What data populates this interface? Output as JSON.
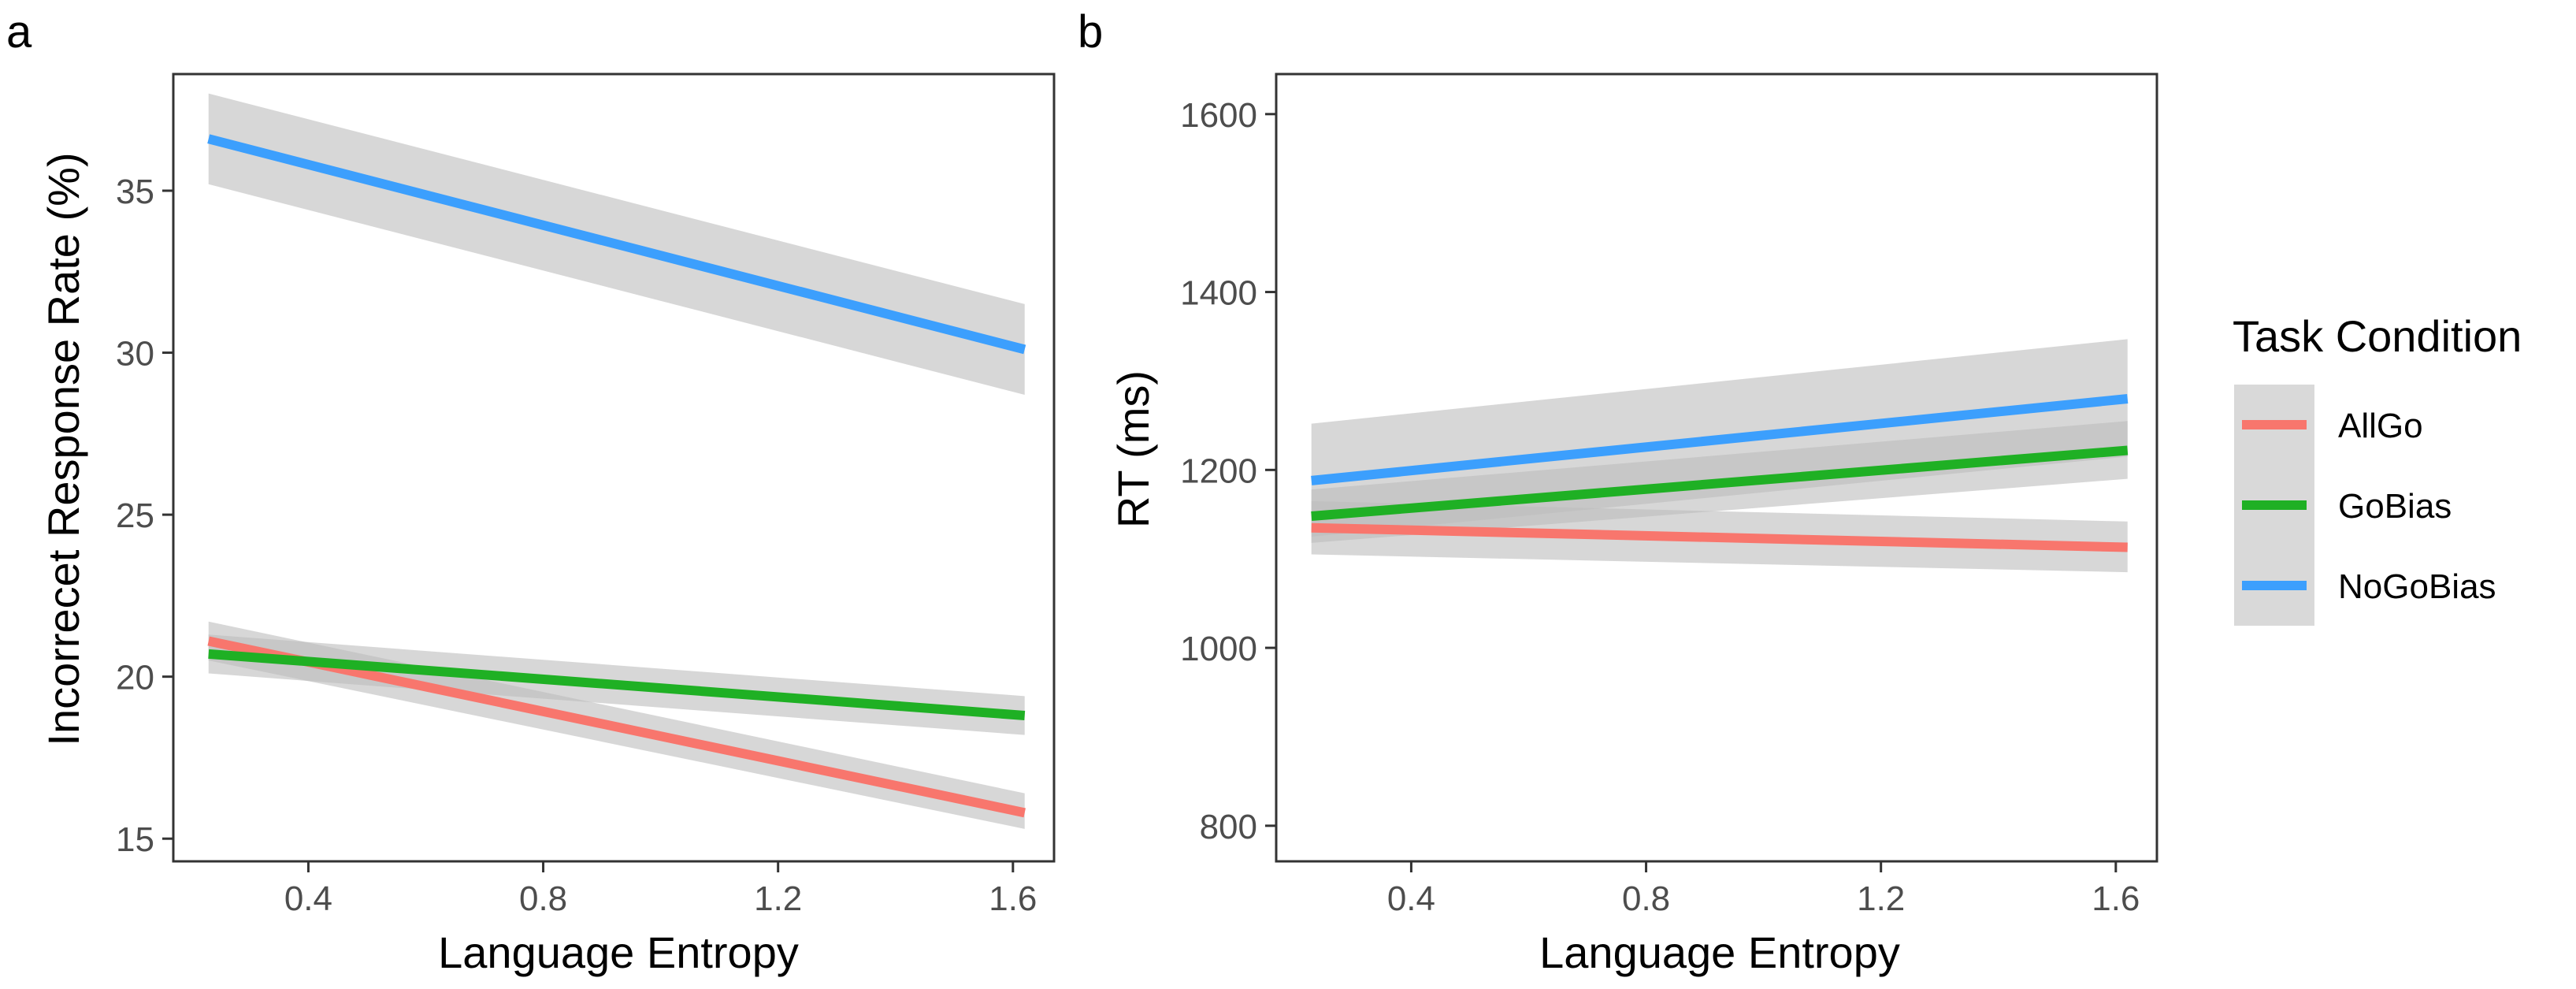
{
  "colors": {
    "AllGo": "#f8766d",
    "GoBias": "#1fb024",
    "NoGoBias": "#3c9ffd",
    "ribbon": "#bdbdbd"
  },
  "legend": {
    "title": "Task Condition",
    "entries": [
      "AllGo",
      "GoBias",
      "NoGoBias"
    ]
  },
  "chart_data": [
    {
      "panel": "a",
      "type": "line",
      "title": "",
      "xlabel": "Language Entropy",
      "ylabel": "Incorrecet Response Rate (%)",
      "xlim": [
        0.17,
        1.67
      ],
      "ylim": [
        14.3,
        38.6
      ],
      "x_ticks": [
        0.4,
        0.8,
        1.2,
        1.6
      ],
      "x_tick_labels": [
        "0.4",
        "0.8",
        "1.2",
        "1.6"
      ],
      "y_ticks": [
        15,
        20,
        25,
        30,
        35
      ],
      "y_tick_labels": [
        "15",
        "20",
        "25",
        "30",
        "35"
      ],
      "series": [
        {
          "name": "AllGo",
          "x": [
            0.23,
            1.62
          ],
          "y": [
            21.1,
            15.8
          ],
          "ci_lower": [
            20.5,
            15.3
          ],
          "ci_upper": [
            21.7,
            16.4
          ]
        },
        {
          "name": "GoBias",
          "x": [
            0.23,
            1.62
          ],
          "y": [
            20.7,
            18.8
          ],
          "ci_lower": [
            20.1,
            18.2
          ],
          "ci_upper": [
            21.3,
            19.4
          ]
        },
        {
          "name": "NoGoBias",
          "x": [
            0.23,
            1.62
          ],
          "y": [
            36.6,
            30.1
          ],
          "ci_lower": [
            35.2,
            28.7
          ],
          "ci_upper": [
            38.0,
            31.5
          ]
        }
      ]
    },
    {
      "panel": "b",
      "type": "line",
      "title": "",
      "xlabel": "Language Entropy",
      "ylabel": "RT (ms)",
      "xlim": [
        0.17,
        1.67
      ],
      "ylim": [
        760,
        1645
      ],
      "x_ticks": [
        0.4,
        0.8,
        1.2,
        1.6
      ],
      "x_tick_labels": [
        "0.4",
        "0.8",
        "1.2",
        "1.6"
      ],
      "y_ticks": [
        800,
        1000,
        1200,
        1400,
        1600
      ],
      "y_tick_labels": [
        "800",
        "1000",
        "1200",
        "1400",
        "1600"
      ],
      "series": [
        {
          "name": "AllGo",
          "x": [
            0.23,
            1.62
          ],
          "y": [
            1135,
            1113
          ],
          "ci_lower": [
            1105,
            1085
          ],
          "ci_upper": [
            1165,
            1142
          ]
        },
        {
          "name": "GoBias",
          "x": [
            0.23,
            1.62
          ],
          "y": [
            1148,
            1222
          ],
          "ci_lower": [
            1118,
            1190
          ],
          "ci_upper": [
            1178,
            1255
          ]
        },
        {
          "name": "NoGoBias",
          "x": [
            0.23,
            1.62
          ],
          "y": [
            1188,
            1280
          ],
          "ci_lower": [
            1125,
            1215
          ],
          "ci_upper": [
            1252,
            1347
          ]
        }
      ]
    }
  ]
}
